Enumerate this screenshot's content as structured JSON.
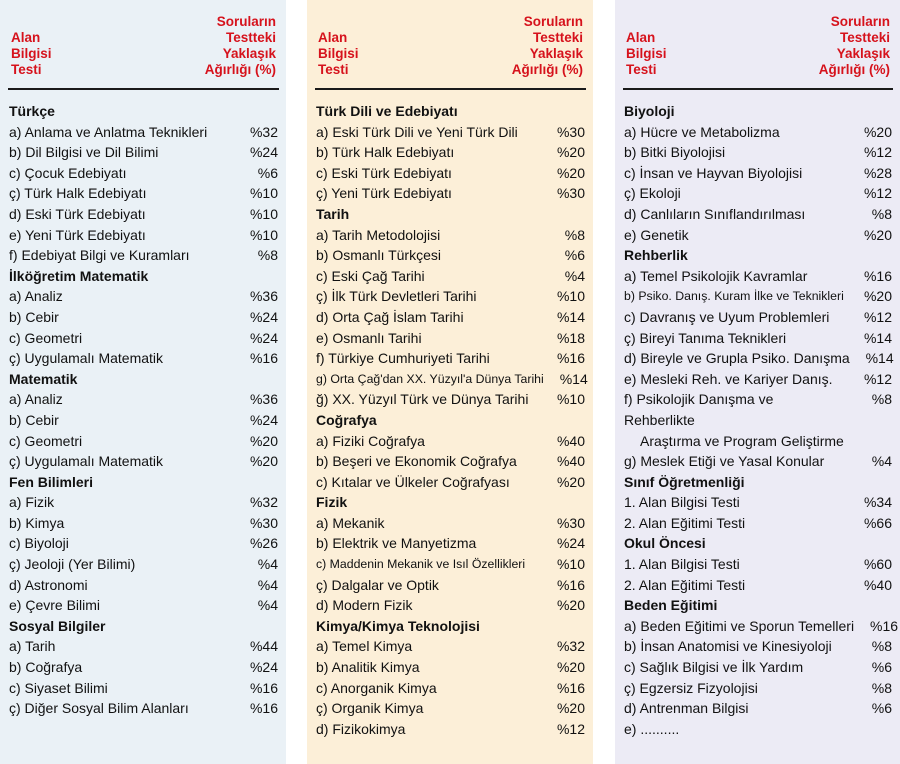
{
  "header": {
    "left": [
      "Alan",
      "Bilgisi",
      "Testi"
    ],
    "right": [
      "Soruların",
      "Testteki",
      "Yaklaşık",
      "Ağırlığı (%)"
    ]
  },
  "columns": [
    [
      {
        "title": "Türkçe",
        "items": [
          {
            "label": "a) Anlama ve Anlatma Teknikleri",
            "pct": "%32"
          },
          {
            "label": "b) Dil Bilgisi ve Dil Bilimi",
            "pct": "%24"
          },
          {
            "label": "c) Çocuk Edebiyatı",
            "pct": "%6"
          },
          {
            "label": "ç) Türk Halk Edebiyatı",
            "pct": "%10"
          },
          {
            "label": "d) Eski Türk Edebiyatı",
            "pct": "%10"
          },
          {
            "label": "e) Yeni Türk Edebiyatı",
            "pct": "%10"
          },
          {
            "label": "f) Edebiyat Bilgi ve Kuramları",
            "pct": "%8"
          }
        ]
      },
      {
        "title": "İlköğretim Matematik",
        "items": [
          {
            "label": "a) Analiz",
            "pct": "%36"
          },
          {
            "label": "b) Cebir",
            "pct": "%24"
          },
          {
            "label": "c) Geometri",
            "pct": "%24"
          },
          {
            "label": "ç) Uygulamalı Matematik",
            "pct": "%16"
          }
        ]
      },
      {
        "title": "Matematik",
        "items": [
          {
            "label": "a) Analiz",
            "pct": "%36"
          },
          {
            "label": "b) Cebir",
            "pct": "%24"
          },
          {
            "label": "c) Geometri",
            "pct": "%20"
          },
          {
            "label": "ç) Uygulamalı Matematik",
            "pct": "%20"
          }
        ]
      },
      {
        "title": "Fen Bilimleri",
        "items": [
          {
            "label": "a) Fizik",
            "pct": "%32"
          },
          {
            "label": "b) Kimya",
            "pct": "%30"
          },
          {
            "label": "c) Biyoloji",
            "pct": "%26"
          },
          {
            "label": "ç) Jeoloji (Yer Bilimi)",
            "pct": "%4"
          },
          {
            "label": "d) Astronomi",
            "pct": "%4"
          },
          {
            "label": "e) Çevre Bilimi",
            "pct": "%4"
          }
        ]
      },
      {
        "title": "Sosyal Bilgiler",
        "items": [
          {
            "label": "a) Tarih",
            "pct": "%44"
          },
          {
            "label": "b) Coğrafya",
            "pct": "%24"
          },
          {
            "label": "c) Siyaset Bilimi",
            "pct": "%16"
          },
          {
            "label": "ç) Diğer Sosyal Bilim Alanları",
            "pct": "%16"
          }
        ]
      }
    ],
    [
      {
        "title": "Türk Dili ve Edebiyatı",
        "items": [
          {
            "label": "a) Eski Türk Dili ve Yeni Türk Dili",
            "pct": "%30"
          },
          {
            "label": "b) Türk Halk Edebiyatı",
            "pct": "%20"
          },
          {
            "label": "c) Eski Türk Edebiyatı",
            "pct": "%20"
          },
          {
            "label": "ç) Yeni Türk Edebiyatı",
            "pct": "%30"
          }
        ]
      },
      {
        "title": "Tarih",
        "items": [
          {
            "label": "a) Tarih Metodolojisi",
            "pct": "%8"
          },
          {
            "label": "b) Osmanlı Türkçesi",
            "pct": "%6"
          },
          {
            "label": "c) Eski Çağ Tarihi",
            "pct": "%4"
          },
          {
            "label": "ç) İlk Türk Devletleri Tarihi",
            "pct": "%10"
          },
          {
            "label": "d) Orta Çağ İslam Tarihi",
            "pct": "%14"
          },
          {
            "label": "e) Osmanlı Tarihi",
            "pct": "%18"
          },
          {
            "label": "f) Türkiye Cumhuriyeti Tarihi",
            "pct": "%16"
          },
          {
            "label": "g) Orta Çağ'dan XX. Yüzyıl'a Dünya Tarihi",
            "pct": "%14",
            "small": true
          },
          {
            "label": "ğ) XX. Yüzyıl Türk ve Dünya Tarihi",
            "pct": "%10"
          }
        ]
      },
      {
        "title": "Coğrafya",
        "items": [
          {
            "label": "a) Fiziki Coğrafya",
            "pct": "%40"
          },
          {
            "label": "b) Beşeri ve Ekonomik Coğrafya",
            "pct": "%40"
          },
          {
            "label": "c) Kıtalar ve Ülkeler Coğrafyası",
            "pct": "%20"
          }
        ]
      },
      {
        "title": "Fizik",
        "items": [
          {
            "label": "a) Mekanik",
            "pct": "%30"
          },
          {
            "label": "b) Elektrik ve Manyetizma",
            "pct": "%24"
          },
          {
            "label": "c) Maddenin Mekanik ve Isıl Özellikleri",
            "pct": "%10",
            "small": true
          },
          {
            "label": "ç) Dalgalar ve Optik",
            "pct": "%16"
          },
          {
            "label": "d) Modern Fizik",
            "pct": "%20"
          }
        ]
      },
      {
        "title": "Kimya/Kimya Teknolojisi",
        "items": [
          {
            "label": "a) Temel Kimya",
            "pct": "%32"
          },
          {
            "label": "b) Analitik Kimya",
            "pct": "%20"
          },
          {
            "label": "c) Anorganik Kimya",
            "pct": "%16"
          },
          {
            "label": "ç) Organik Kimya",
            "pct": "%20"
          },
          {
            "label": "d) Fizikokimya",
            "pct": "%12"
          }
        ]
      }
    ],
    [
      {
        "title": "Biyoloji",
        "items": [
          {
            "label": "a) Hücre ve Metabolizma",
            "pct": "%20"
          },
          {
            "label": "b) Bitki Biyolojisi",
            "pct": "%12"
          },
          {
            "label": "c) İnsan ve Hayvan Biyolojisi",
            "pct": "%28"
          },
          {
            "label": "ç) Ekoloji",
            "pct": "%12"
          },
          {
            "label": "d) Canlıların Sınıflandırılması",
            "pct": "%8"
          },
          {
            "label": "e) Genetik",
            "pct": "%20"
          }
        ]
      },
      {
        "title": "Rehberlik",
        "items": [
          {
            "label": "a) Temel Psikolojik Kavramlar",
            "pct": "%16"
          },
          {
            "label": "b) Psiko. Danış. Kuram İlke ve Teknikleri",
            "pct": "%20",
            "small": true
          },
          {
            "label": "c) Davranış ve Uyum Problemleri",
            "pct": "%12"
          },
          {
            "label": "ç) Bireyi Tanıma Teknikleri",
            "pct": "%14"
          },
          {
            "label": "d) Bireyle ve Grupla Psiko. Danışma",
            "pct": "%14"
          },
          {
            "label": "e) Mesleki Reh. ve Kariyer Danış.",
            "pct": "%12"
          },
          {
            "label": "f) Psikolojik Danışma ve Rehberlikte",
            "label2": "Araştırma ve Program Geliştirme",
            "pct": "%8"
          },
          {
            "label": "g) Meslek Etiği ve Yasal Konular",
            "pct": "%4"
          }
        ]
      },
      {
        "title": "Sınıf Öğretmenliği",
        "items": [
          {
            "label": "1. Alan Bilgisi Testi",
            "pct": "%34"
          },
          {
            "label": "2. Alan Eğitimi Testi",
            "pct": "%66"
          }
        ]
      },
      {
        "title": "Okul Öncesi",
        "items": [
          {
            "label": "1. Alan Bilgisi Testi",
            "pct": "%60"
          },
          {
            "label": "2. Alan Eğitimi Testi",
            "pct": "%40"
          }
        ]
      },
      {
        "title": "Beden Eğitimi",
        "items": [
          {
            "label": "a) Beden Eğitimi ve Sporun Temelleri",
            "pct": "%16"
          },
          {
            "label": "b) İnsan Anatomisi ve Kinesiyoloji",
            "pct": "%8"
          },
          {
            "label": "c) Sağlık Bilgisi ve İlk Yardım",
            "pct": "%6"
          },
          {
            "label": "ç) Egzersiz Fizyolojisi",
            "pct": "%8"
          },
          {
            "label": "d) Antrenman Bilgisi",
            "pct": "%6"
          },
          {
            "label": "e) ..........",
            "pct": ""
          }
        ]
      }
    ]
  ]
}
